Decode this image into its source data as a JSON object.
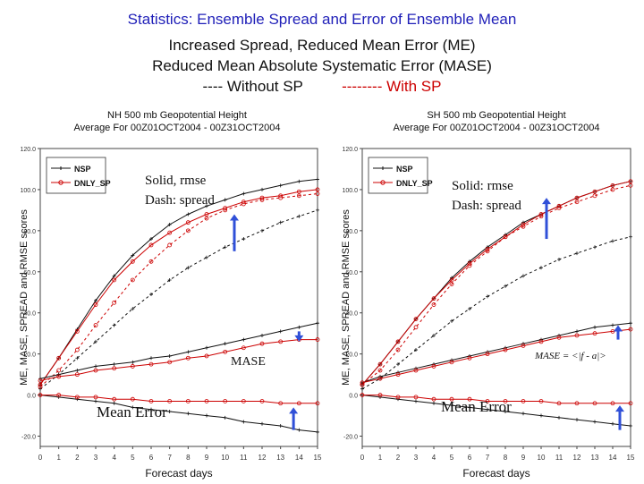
{
  "header": {
    "line1": "Statistics: Ensemble Spread and Error of Ensemble Mean",
    "line2": "Increased Spread, Reduced Mean Error (ME)",
    "line3": "Reduced Mean Absolute Systematic Error (MASE)",
    "legend_without": "---- Without SP",
    "legend_with": "-------- With SP"
  },
  "colors": {
    "without_sp": "#111111",
    "with_sp": "#cc0000",
    "arrow": "#3050d8",
    "title": "#1f1fb8"
  },
  "chart_data": [
    {
      "type": "line",
      "title": "NH 500 mb Geopotential Height",
      "subtitle": "Average For 00Z01OCT2004 - 00Z31OCT2004",
      "xlabel": "Forecast days",
      "ylabel": "ME, MASE, SPREAD and RMSE scores",
      "xlim": [
        0,
        15
      ],
      "ylim": [
        -25,
        120
      ],
      "x_ticks": [
        0,
        1,
        2,
        3,
        4,
        5,
        6,
        7,
        8,
        9,
        10,
        11,
        12,
        13,
        14,
        15
      ],
      "y_ticks": [
        -20,
        0,
        20,
        40,
        60,
        80,
        100,
        120
      ],
      "legend": [
        "NSP",
        "DNLY_SP"
      ],
      "annotations": [
        "Solid, rmse",
        "Dash: spread",
        "MASE",
        "Mean Error"
      ],
      "series": [
        {
          "name": "NSP",
          "metric": "rmse",
          "style": "solid",
          "x": [
            0,
            1,
            2,
            3,
            4,
            5,
            6,
            7,
            8,
            9,
            10,
            11,
            12,
            13,
            14,
            15
          ],
          "values": [
            5,
            18,
            32,
            46,
            58,
            68,
            76,
            83,
            88,
            92,
            95,
            98,
            100,
            102,
            104,
            105
          ]
        },
        {
          "name": "DNLY_SP",
          "metric": "rmse",
          "style": "solid",
          "x": [
            0,
            1,
            2,
            3,
            4,
            5,
            6,
            7,
            8,
            9,
            10,
            11,
            12,
            13,
            14,
            15
          ],
          "values": [
            5,
            18,
            31,
            44,
            56,
            65,
            73,
            79,
            84,
            88,
            91,
            94,
            96,
            97,
            99,
            100
          ]
        },
        {
          "name": "NSP",
          "metric": "spread",
          "style": "dash",
          "x": [
            0,
            1,
            2,
            3,
            4,
            5,
            6,
            7,
            8,
            9,
            10,
            11,
            12,
            13,
            14,
            15
          ],
          "values": [
            3,
            10,
            18,
            26,
            34,
            42,
            49,
            56,
            62,
            67,
            72,
            76,
            80,
            84,
            87,
            90
          ]
        },
        {
          "name": "DNLY_SP",
          "metric": "spread",
          "style": "dash",
          "x": [
            0,
            1,
            2,
            3,
            4,
            5,
            6,
            7,
            8,
            9,
            10,
            11,
            12,
            13,
            14,
            15
          ],
          "values": [
            4,
            12,
            22,
            34,
            45,
            56,
            65,
            73,
            80,
            86,
            90,
            93,
            95,
            96,
            97,
            98
          ]
        },
        {
          "name": "NSP",
          "metric": "mase",
          "style": "solid",
          "x": [
            0,
            1,
            2,
            3,
            4,
            5,
            6,
            7,
            8,
            9,
            10,
            11,
            12,
            13,
            14,
            15
          ],
          "values": [
            8,
            10,
            12,
            14,
            15,
            16,
            18,
            19,
            21,
            23,
            25,
            27,
            29,
            31,
            33,
            35
          ]
        },
        {
          "name": "DNLY_SP",
          "metric": "mase",
          "style": "solid",
          "x": [
            0,
            1,
            2,
            3,
            4,
            5,
            6,
            7,
            8,
            9,
            10,
            11,
            12,
            13,
            14,
            15
          ],
          "values": [
            7,
            9,
            10,
            12,
            13,
            14,
            15,
            16,
            18,
            19,
            21,
            23,
            25,
            26,
            27,
            27
          ]
        },
        {
          "name": "NSP",
          "metric": "me",
          "style": "solid",
          "x": [
            0,
            1,
            2,
            3,
            4,
            5,
            6,
            7,
            8,
            9,
            10,
            11,
            12,
            13,
            14,
            15
          ],
          "values": [
            0,
            -1,
            -2,
            -3,
            -4,
            -6,
            -7,
            -8,
            -9,
            -10,
            -11,
            -13,
            -14,
            -15,
            -17,
            -18
          ]
        },
        {
          "name": "DNLY_SP",
          "metric": "me",
          "style": "solid",
          "x": [
            0,
            1,
            2,
            3,
            4,
            5,
            6,
            7,
            8,
            9,
            10,
            11,
            12,
            13,
            14,
            15
          ],
          "values": [
            0,
            0,
            -1,
            -1,
            -2,
            -2,
            -3,
            -3,
            -3,
            -3,
            -3,
            -3,
            -3,
            -4,
            -4,
            -4
          ]
        }
      ],
      "arrows": [
        {
          "x": 10.5,
          "from": 70,
          "to": 88
        },
        {
          "x": 14,
          "from": 31,
          "to": 26
        },
        {
          "x": 13.7,
          "from": -17,
          "to": -6
        }
      ]
    },
    {
      "type": "line",
      "title": "SH 500 mb Geopotential Height",
      "subtitle": "Average For 00Z01OCT2004 - 00Z31OCT2004",
      "xlabel": "Forecast days",
      "ylabel": "ME, MASE, SPREAD and RMSE scores",
      "xlim": [
        0,
        15
      ],
      "ylim": [
        -25,
        120
      ],
      "x_ticks": [
        0,
        1,
        2,
        3,
        4,
        5,
        6,
        7,
        8,
        9,
        10,
        11,
        12,
        13,
        14,
        15
      ],
      "y_ticks": [
        -20,
        0,
        20,
        40,
        60,
        80,
        100,
        120
      ],
      "legend": [
        "NSP",
        "DNLY_SP"
      ],
      "annotations": [
        "Solid: rmse",
        "Dash: spread",
        "Mean Error",
        "MASE = <|f - a|>"
      ],
      "series": [
        {
          "name": "NSP",
          "metric": "rmse",
          "style": "solid",
          "x": [
            0,
            1,
            2,
            3,
            4,
            5,
            6,
            7,
            8,
            9,
            10,
            11,
            12,
            13,
            14,
            15
          ],
          "values": [
            5,
            15,
            26,
            37,
            47,
            57,
            65,
            72,
            78,
            84,
            88,
            92,
            96,
            99,
            102,
            104
          ]
        },
        {
          "name": "DNLY_SP",
          "metric": "rmse",
          "style": "solid",
          "x": [
            0,
            1,
            2,
            3,
            4,
            5,
            6,
            7,
            8,
            9,
            10,
            11,
            12,
            13,
            14,
            15
          ],
          "values": [
            5,
            15,
            26,
            37,
            47,
            56,
            64,
            71,
            77,
            83,
            88,
            92,
            96,
            99,
            102,
            104
          ]
        },
        {
          "name": "NSP",
          "metric": "spread",
          "style": "dash",
          "x": [
            0,
            1,
            2,
            3,
            4,
            5,
            6,
            7,
            8,
            9,
            10,
            11,
            12,
            13,
            14,
            15
          ],
          "values": [
            3,
            8,
            15,
            22,
            29,
            36,
            42,
            48,
            53,
            58,
            62,
            66,
            69,
            72,
            75,
            77
          ]
        },
        {
          "name": "DNLY_SP",
          "metric": "spread",
          "style": "dash",
          "x": [
            0,
            1,
            2,
            3,
            4,
            5,
            6,
            7,
            8,
            9,
            10,
            11,
            12,
            13,
            14,
            15
          ],
          "values": [
            5,
            12,
            22,
            33,
            44,
            54,
            63,
            70,
            77,
            82,
            87,
            91,
            94,
            97,
            100,
            102
          ]
        },
        {
          "name": "NSP",
          "metric": "mase",
          "style": "solid",
          "x": [
            0,
            1,
            2,
            3,
            4,
            5,
            6,
            7,
            8,
            9,
            10,
            11,
            12,
            13,
            14,
            15
          ],
          "values": [
            6,
            9,
            11,
            13,
            15,
            17,
            19,
            21,
            23,
            25,
            27,
            29,
            31,
            33,
            34,
            35
          ]
        },
        {
          "name": "DNLY_SP",
          "metric": "mase",
          "style": "solid",
          "x": [
            0,
            1,
            2,
            3,
            4,
            5,
            6,
            7,
            8,
            9,
            10,
            11,
            12,
            13,
            14,
            15
          ],
          "values": [
            6,
            8,
            10,
            12,
            14,
            16,
            18,
            20,
            22,
            24,
            26,
            28,
            29,
            30,
            31,
            32
          ]
        },
        {
          "name": "NSP",
          "metric": "me",
          "style": "solid",
          "x": [
            0,
            1,
            2,
            3,
            4,
            5,
            6,
            7,
            8,
            9,
            10,
            11,
            12,
            13,
            14,
            15
          ],
          "values": [
            0,
            -1,
            -2,
            -3,
            -4,
            -5,
            -6,
            -7,
            -8,
            -9,
            -10,
            -11,
            -12,
            -13,
            -14,
            -15
          ]
        },
        {
          "name": "DNLY_SP",
          "metric": "me",
          "style": "solid",
          "x": [
            0,
            1,
            2,
            3,
            4,
            5,
            6,
            7,
            8,
            9,
            10,
            11,
            12,
            13,
            14,
            15
          ],
          "values": [
            0,
            0,
            -1,
            -1,
            -2,
            -2,
            -2,
            -3,
            -3,
            -3,
            -3,
            -4,
            -4,
            -4,
            -4,
            -4
          ]
        }
      ],
      "arrows": [
        {
          "x": 10.3,
          "from": 76,
          "to": 96
        },
        {
          "x": 14.3,
          "from": 27,
          "to": 34
        },
        {
          "x": 14.4,
          "from": -17,
          "to": -5
        }
      ]
    }
  ]
}
